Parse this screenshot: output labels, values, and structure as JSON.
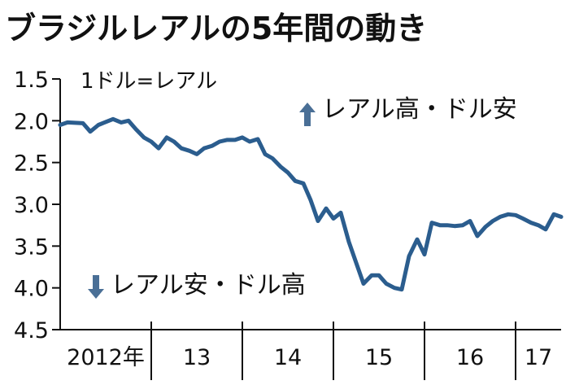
{
  "title": "ブラジルレアルの5年間の動き",
  "chart_data": {
    "type": "line",
    "unit_label": "1ドル=レアル",
    "y_inverted": true,
    "ylim": [
      1.5,
      4.5
    ],
    "yticks": [
      "1.5",
      "2.0",
      "2.5",
      "3.0",
      "3.5",
      "4.0",
      "4.5"
    ],
    "x_segments": [
      {
        "label": "2012年",
        "start": 2012.0,
        "end": 2013.0
      },
      {
        "label": "13",
        "start": 2013.0,
        "end": 2014.0
      },
      {
        "label": "14",
        "start": 2014.0,
        "end": 2015.0
      },
      {
        "label": "15",
        "start": 2015.0,
        "end": 2016.0
      },
      {
        "label": "16",
        "start": 2016.0,
        "end": 2017.0
      },
      {
        "label": "17",
        "start": 2017.0,
        "end": 2017.5
      }
    ],
    "xlim": [
      2012.0,
      2017.5
    ],
    "annotations": {
      "up": "レアル高・ドル安",
      "down": "レアル安・ドル高"
    },
    "line_color": "#2b5d8e",
    "series": [
      {
        "x": [
          2012.0,
          2012.08,
          2012.25,
          2012.33,
          2012.42,
          2012.58,
          2012.67,
          2012.75,
          2012.83,
          2012.92,
          2013.0,
          2013.08,
          2013.17,
          2013.25,
          2013.33,
          2013.42,
          2013.5,
          2013.58,
          2013.67,
          2013.75,
          2013.83,
          2013.92,
          2014.0,
          2014.08,
          2014.17,
          2014.25,
          2014.33,
          2014.42,
          2014.5,
          2014.58,
          2014.67,
          2014.75,
          2014.83,
          2014.92,
          2015.0,
          2015.08,
          2015.17,
          2015.25,
          2015.33,
          2015.42,
          2015.5,
          2015.58,
          2015.67,
          2015.75,
          2015.83,
          2015.92,
          2016.0,
          2016.08,
          2016.17,
          2016.25,
          2016.33,
          2016.42,
          2016.5,
          2016.58,
          2016.67,
          2016.75,
          2016.83,
          2016.92,
          2017.0,
          2017.08,
          2017.17,
          2017.25,
          2017.33,
          2017.42,
          2017.5
        ],
        "y": [
          2.05,
          2.02,
          2.03,
          2.13,
          2.05,
          1.98,
          2.02,
          2.0,
          2.1,
          2.2,
          2.25,
          2.33,
          2.2,
          2.25,
          2.33,
          2.36,
          2.4,
          2.33,
          2.3,
          2.25,
          2.23,
          2.23,
          2.2,
          2.25,
          2.22,
          2.4,
          2.45,
          2.55,
          2.62,
          2.72,
          2.75,
          2.95,
          3.2,
          3.05,
          3.17,
          3.1,
          3.45,
          3.7,
          3.95,
          3.85,
          3.85,
          3.95,
          4.0,
          4.02,
          3.62,
          3.42,
          3.6,
          3.22,
          3.25,
          3.25,
          3.26,
          3.25,
          3.2,
          3.38,
          3.27,
          3.2,
          3.15,
          3.12,
          3.13,
          3.17,
          3.22,
          3.25,
          3.3,
          3.12,
          3.15
        ]
      }
    ]
  }
}
